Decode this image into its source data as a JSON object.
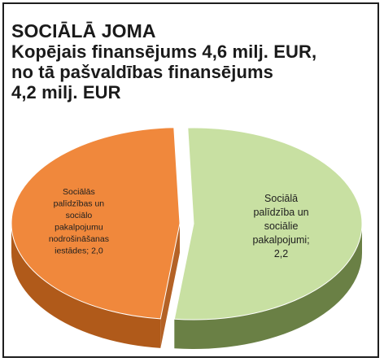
{
  "title_lines": [
    "SOCIĀLĀ JOMA",
    "Kopējais finansējums 4,6 milj. EUR,",
    "no tā pašvaldības finansējums",
    "4,2 milj. EUR"
  ],
  "chart_data": {
    "type": "pie",
    "title": "SOCIĀLĀ JOMA",
    "subtitle": "Kopējais finansējums 4,6 milj. EUR, no tā pašvaldības finansējums 4,2 milj. EUR",
    "slices": [
      {
        "value": 2.2,
        "label_lines": [
          "Sociālā",
          "palīdzība un",
          "sociālie",
          "pakalpojumi;",
          "2,2"
        ],
        "color": "#c8e0a2",
        "side_color": "#6a8045",
        "exploded": false
      },
      {
        "value": 2.0,
        "label_lines": [
          "Sociālās",
          "palīdzības un",
          "sociālo",
          "pakalpojumu",
          "nodrošināšanas",
          "iestādes; 2,0"
        ],
        "color": "#f0883c",
        "side_color": "#b05a1a",
        "exploded": true
      }
    ]
  }
}
